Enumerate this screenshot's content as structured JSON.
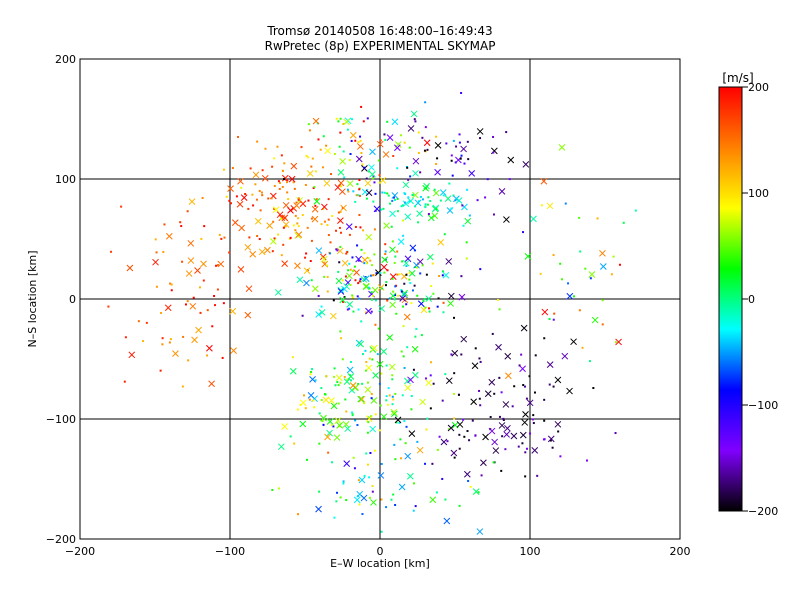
{
  "chart_data": {
    "type": "scatter",
    "title": "Tromsø 20140508 16:48:00–16:49:43",
    "subtitle": "RwPretec (8p) EXPERIMENTAL SKYMAP",
    "xlabel": "E–W location [km]",
    "ylabel": "N–S location [km]",
    "xlim": [
      -200,
      200
    ],
    "ylim": [
      -200,
      200
    ],
    "x_ticks": [
      "−200",
      "−100",
      "0",
      "100",
      "200"
    ],
    "y_ticks": [
      "−200",
      "−100",
      "0",
      "100",
      "200"
    ],
    "grid": true,
    "colorbar": {
      "label": "[m/s]",
      "range": [
        -200,
        200
      ],
      "ticks": [
        "200",
        "100",
        "0",
        "−100",
        "−200"
      ],
      "colors": [
        "#000000",
        "#8000ff",
        "#0000ff",
        "#00ffff",
        "#00ff00",
        "#ffff00",
        "#ff8000",
        "#ff0000"
      ]
    },
    "markers": {
      "dot": "small filled point",
      "cross": "x marker"
    },
    "point_groups": [
      {
        "region": "north-west red cluster",
        "center": [
          -60,
          75
        ],
        "spread": [
          45,
          45
        ],
        "count": 170,
        "velocity_mean": 150,
        "velocity_spread": 60
      },
      {
        "region": "north central mixed",
        "center": [
          -10,
          120
        ],
        "spread": [
          40,
          40
        ],
        "count": 90,
        "velocity_mean": 60,
        "velocity_spread": 140
      },
      {
        "region": "central band",
        "center": [
          0,
          15
        ],
        "spread": [
          45,
          30
        ],
        "count": 200,
        "velocity_mean": 0,
        "velocity_spread": 180
      },
      {
        "region": "north-east cyan band",
        "center": [
          25,
          80
        ],
        "spread": [
          35,
          15
        ],
        "count": 70,
        "velocity_mean": -10,
        "velocity_spread": 40
      },
      {
        "region": "north-east blue/black",
        "center": [
          50,
          110
        ],
        "spread": [
          50,
          35
        ],
        "count": 60,
        "velocity_mean": -150,
        "velocity_spread": 60
      },
      {
        "region": "south central green",
        "center": [
          -10,
          -80
        ],
        "spread": [
          45,
          45
        ],
        "count": 170,
        "velocity_mean": 30,
        "velocity_spread": 90
      },
      {
        "region": "south-east black",
        "center": [
          80,
          -90
        ],
        "spread": [
          45,
          55
        ],
        "count": 120,
        "velocity_mean": -180,
        "velocity_spread": 40
      },
      {
        "region": "west scattered red",
        "center": [
          -130,
          10
        ],
        "spread": [
          40,
          70
        ],
        "count": 70,
        "velocity_mean": 160,
        "velocity_spread": 40
      },
      {
        "region": "east scattered",
        "center": [
          130,
          20
        ],
        "spread": [
          40,
          70
        ],
        "count": 40,
        "velocity_mean": 80,
        "velocity_spread": 160
      },
      {
        "region": "far south mixed",
        "center": [
          0,
          -160
        ],
        "spread": [
          60,
          25
        ],
        "count": 60,
        "velocity_mean": 20,
        "velocity_spread": 150
      }
    ]
  }
}
